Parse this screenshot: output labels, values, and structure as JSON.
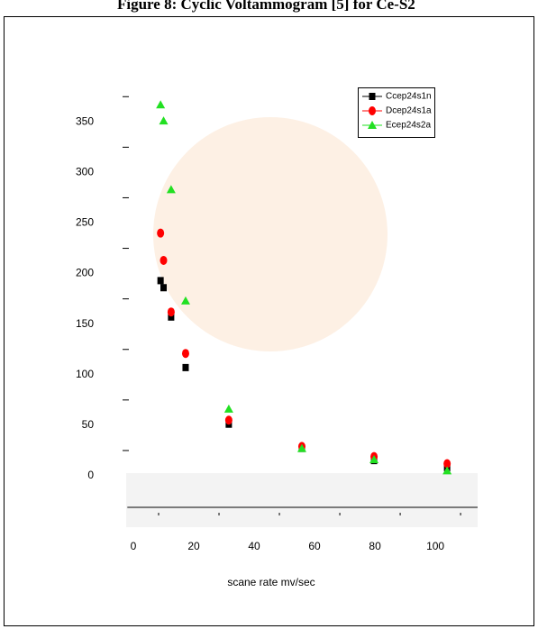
{
  "chart_data": {
    "type": "scatter",
    "title": "Figure 8: Cyclic Voltammogram [5] for Ce-S2",
    "x_label": "scane rate mv/sec",
    "x": [
      9,
      10,
      12.5,
      17.3,
      31.6,
      55.8,
      79.7,
      103.9
    ],
    "series": [
      {
        "name": "Ccep24s1n",
        "color": "#000000",
        "marker": "square",
        "values": [
          193,
          186,
          157,
          107,
          51,
          27,
          15,
          8
        ]
      },
      {
        "name": "Dcep24s1a",
        "color": "#ff0000",
        "marker": "circle",
        "values": [
          240,
          213,
          162,
          121,
          55,
          29,
          19,
          12
        ]
      },
      {
        "name": "Ecep24s2a",
        "color": "#22e022",
        "marker": "triangle",
        "values": [
          367,
          351,
          283,
          173,
          66,
          27,
          16,
          5
        ]
      }
    ],
    "xlim": [
      -2,
      114
    ],
    "xticks": [
      0,
      20,
      40,
      60,
      80,
      100
    ],
    "ylim": [
      -30,
      385
    ],
    "yticks": [
      0,
      50,
      100,
      150,
      200,
      250,
      300,
      350
    ],
    "legend": "upper right"
  }
}
